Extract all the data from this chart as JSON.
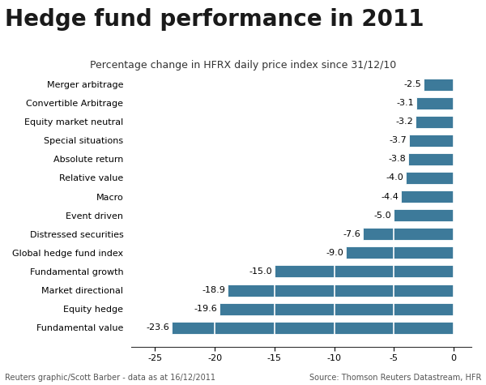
{
  "title": "Hedge fund performance in 2011",
  "subtitle": "Percentage change in HFRX daily price index since 31/12/10",
  "categories": [
    "Fundamental value",
    "Equity hedge",
    "Market directional",
    "Fundamental growth",
    "Global hedge fund index",
    "Distressed securities",
    "Event driven",
    "Macro",
    "Relative value",
    "Absolute return",
    "Special situations",
    "Equity market neutral",
    "Convertible Arbitrage",
    "Merger arbitrage"
  ],
  "values": [
    -23.6,
    -19.6,
    -18.9,
    -15.0,
    -9.0,
    -7.6,
    -5.0,
    -4.4,
    -4.0,
    -3.8,
    -3.7,
    -3.2,
    -3.1,
    -2.5
  ],
  "bar_color": "#3d7a9a",
  "xlim": [
    -27,
    1.5
  ],
  "xticks": [
    -25,
    -20,
    -15,
    -10,
    -5,
    0
  ],
  "footnote_left": "Reuters graphic/Scott Barber - data as at 16/12/2011",
  "footnote_right": "Source: Thomson Reuters Datastream, HFR",
  "background_color": "#ffffff",
  "title_fontsize": 20,
  "subtitle_fontsize": 9,
  "label_fontsize": 8,
  "value_fontsize": 8,
  "footnote_fontsize": 7
}
